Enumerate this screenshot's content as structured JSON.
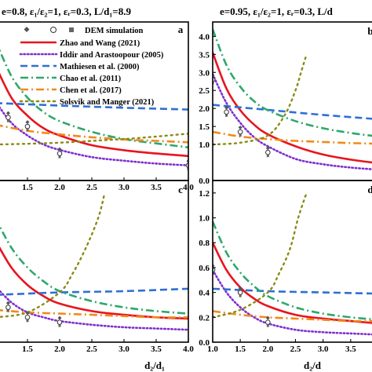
{
  "chart_data": [
    {
      "panel": "a",
      "type": "line",
      "title": "e=0.8,  ε₁/ε₂=1,  εᵣ=0.3,  L/d₁=8.9",
      "xlim": [
        1.0,
        4.0
      ],
      "ylim": [
        0,
        4.4
      ],
      "xticks": [
        "1.5",
        "2.0",
        "2.5",
        "3.0",
        "3.5",
        "4.0"
      ],
      "yticks": [],
      "legend": {
        "placement": "top-right",
        "markers_label": "DEM simulation",
        "entries": [
          {
            "name": "Zhao and Wang (2021)",
            "color": "#e8141e",
            "dash": "solid"
          },
          {
            "name": "Iddir and Arastoopour (2005)",
            "color": "#7f2fcf",
            "dash": "dot"
          },
          {
            "name": "Mathiesen et al. (2000)",
            "color": "#2f6fd6",
            "dash": "dash"
          },
          {
            "name": "Chao et al. (2011)",
            "color": "#2da86b",
            "dash": "dashdot"
          },
          {
            "name": "Chen et al. (2017)",
            "color": "#f08a1c",
            "dash": "dashdot"
          },
          {
            "name": "Solsvik and Manger (2021)",
            "color": "#8a8a16",
            "dash": "shortdot"
          }
        ]
      },
      "series": [
        {
          "x": [
            1.0,
            1.25,
            1.5,
            1.75,
            2.0,
            2.5,
            3.0,
            3.5,
            4.0
          ],
          "values": [
            3.2,
            2.3,
            1.8,
            1.45,
            1.25,
            0.98,
            0.84,
            0.75,
            0.68
          ]
        },
        {
          "x": [
            1.0,
            1.25,
            1.5,
            1.75,
            2.0,
            2.5,
            3.0,
            3.5,
            4.0
          ],
          "values": [
            2.2,
            1.6,
            1.25,
            1.0,
            0.85,
            0.65,
            0.55,
            0.47,
            0.42
          ]
        },
        {
          "x": [
            1.0,
            2.0,
            3.0,
            4.0
          ],
          "values": [
            2.15,
            2.08,
            2.02,
            1.97
          ]
        },
        {
          "x": [
            1.0,
            1.25,
            1.5,
            1.75,
            2.0,
            2.5,
            3.0,
            3.5,
            4.0
          ],
          "values": [
            3.9,
            2.9,
            2.3,
            1.9,
            1.65,
            1.35,
            1.15,
            1.03,
            0.92
          ]
        },
        {
          "x": [
            1.0,
            1.5,
            2.0,
            2.5,
            3.0,
            3.5,
            4.0
          ],
          "values": [
            1.55,
            1.38,
            1.28,
            1.2,
            1.14,
            1.1,
            1.06
          ]
        },
        {
          "x": [
            1.0,
            1.5,
            2.0,
            2.5,
            3.0,
            3.5,
            4.0
          ],
          "values": [
            1.0,
            1.02,
            1.05,
            1.1,
            1.15,
            1.22,
            1.3
          ]
        }
      ],
      "dem_points": {
        "x": [
          1.0,
          1.2,
          1.5,
          2.0,
          4.0
        ],
        "values": [
          1.9,
          1.75,
          1.5,
          0.75,
          0.42
        ]
      }
    },
    {
      "panel": "b",
      "type": "line",
      "title": "e=0.95,  ε₁/ε₂=1,  εᵣ=0.3,  L/d",
      "xlim": [
        1.0,
        4.0
      ],
      "ylim": [
        0,
        4.4
      ],
      "xticks": [],
      "yticks": [
        "0.0",
        "1.0",
        "1.5",
        "2.0",
        "2.5",
        "3.0",
        "3.5",
        "4.0"
      ],
      "series": [
        {
          "x": [
            1.0,
            1.25,
            1.5,
            1.75,
            2.0,
            2.5,
            3.0,
            3.5,
            4.0
          ],
          "values": [
            3.55,
            2.55,
            1.95,
            1.55,
            1.28,
            0.95,
            0.72,
            0.58,
            0.48
          ]
        },
        {
          "x": [
            1.0,
            1.25,
            1.5,
            1.75,
            2.0,
            2.5,
            3.0,
            3.5,
            4.0
          ],
          "values": [
            2.95,
            2.15,
            1.6,
            1.2,
            0.95,
            0.6,
            0.45,
            0.36,
            0.3
          ]
        },
        {
          "x": [
            1.0,
            2.0,
            3.0,
            4.0
          ],
          "values": [
            2.1,
            1.96,
            1.82,
            1.7
          ]
        },
        {
          "x": [
            1.0,
            1.25,
            1.5,
            1.75,
            2.0,
            2.5,
            3.0,
            3.5,
            4.0
          ],
          "values": [
            4.2,
            3.2,
            2.6,
            2.2,
            1.95,
            1.65,
            1.45,
            1.32,
            1.22
          ]
        },
        {
          "x": [
            1.0,
            1.5,
            2.0,
            2.5,
            3.0,
            3.5,
            4.0
          ],
          "values": [
            1.35,
            1.22,
            1.15,
            1.1,
            1.07,
            1.04,
            1.02
          ]
        },
        {
          "x": [
            1.0,
            1.5,
            2.0,
            2.3,
            2.5,
            2.6,
            2.7
          ],
          "values": [
            1.0,
            1.05,
            1.25,
            1.8,
            2.5,
            3.0,
            3.5
          ]
        }
      ],
      "dem_points": {
        "x": [
          1.0,
          1.25,
          1.5,
          2.0
        ],
        "values": [
          2.8,
          1.9,
          1.35,
          0.78
        ]
      }
    },
    {
      "panel": "c",
      "type": "line",
      "xlim": [
        1.0,
        4.0
      ],
      "ylim": [
        0,
        1.3
      ],
      "xticks": [
        "1.5",
        "2.0",
        "2.5",
        "3.0",
        "3.5",
        "4.0"
      ],
      "yticks": [],
      "xlabel": "d₂/d₁",
      "series": [
        {
          "x": [
            1.0,
            1.25,
            1.5,
            1.75,
            2.0,
            2.5,
            3.0,
            3.5,
            4.0
          ],
          "values": [
            0.82,
            0.6,
            0.46,
            0.37,
            0.31,
            0.25,
            0.22,
            0.2,
            0.19
          ]
        },
        {
          "x": [
            1.0,
            1.25,
            1.5,
            1.75,
            2.0,
            2.5,
            3.0,
            3.5,
            4.0
          ],
          "values": [
            0.45,
            0.32,
            0.24,
            0.2,
            0.17,
            0.14,
            0.12,
            0.11,
            0.1
          ]
        },
        {
          "x": [
            1.0,
            2.0,
            3.0,
            4.0
          ],
          "values": [
            0.38,
            0.4,
            0.41,
            0.43
          ]
        },
        {
          "x": [
            1.0,
            1.25,
            1.5,
            1.75,
            2.0,
            2.5,
            3.0,
            3.5,
            4.0
          ],
          "values": [
            1.0,
            0.76,
            0.6,
            0.49,
            0.41,
            0.33,
            0.28,
            0.25,
            0.23
          ]
        },
        {
          "x": [
            1.0,
            1.5,
            2.0,
            2.5,
            3.0,
            3.5,
            4.0
          ],
          "values": [
            0.26,
            0.24,
            0.23,
            0.22,
            0.21,
            0.2,
            0.2
          ]
        },
        {
          "x": [
            1.0,
            1.5,
            2.0,
            2.2,
            2.4,
            2.6,
            2.7
          ],
          "values": [
            0.2,
            0.24,
            0.4,
            0.55,
            0.75,
            1.0,
            1.2
          ]
        }
      ],
      "dem_points": {
        "x": [
          1.0,
          1.2,
          1.5,
          2.0
        ],
        "values": [
          0.35,
          0.28,
          0.2,
          0.16
        ]
      }
    },
    {
      "panel": "d",
      "type": "line",
      "xlim": [
        1.0,
        4.0
      ],
      "ylim": [
        0,
        1.3
      ],
      "xticks": [
        "1.0",
        "1.5",
        "2.0",
        "2.5",
        "3.0",
        "3.5"
      ],
      "yticks": [
        "0.0",
        "0.2",
        "0.4",
        "0.6",
        "0.8",
        "1.0",
        "1.2"
      ],
      "xlabel": "d₂/d",
      "series": [
        {
          "x": [
            1.0,
            1.25,
            1.5,
            1.75,
            2.0,
            2.5,
            3.0,
            3.5,
            4.0
          ],
          "values": [
            0.8,
            0.58,
            0.44,
            0.35,
            0.29,
            0.22,
            0.19,
            0.17,
            0.15
          ]
        },
        {
          "x": [
            1.0,
            1.25,
            1.5,
            1.75,
            2.0,
            2.5,
            3.0,
            3.5,
            4.0
          ],
          "values": [
            0.58,
            0.4,
            0.28,
            0.2,
            0.15,
            0.1,
            0.08,
            0.07,
            0.06
          ]
        },
        {
          "x": [
            1.0,
            2.0,
            3.0,
            4.0
          ],
          "values": [
            0.43,
            0.41,
            0.4,
            0.39
          ]
        },
        {
          "x": [
            1.0,
            1.25,
            1.5,
            1.75,
            2.0,
            2.5,
            3.0,
            3.5,
            4.0
          ],
          "values": [
            0.97,
            0.72,
            0.56,
            0.45,
            0.37,
            0.28,
            0.23,
            0.2,
            0.18
          ]
        },
        {
          "x": [
            1.0,
            1.5,
            2.0,
            2.5,
            3.0,
            3.5,
            4.0
          ],
          "values": [
            0.25,
            0.22,
            0.2,
            0.19,
            0.18,
            0.17,
            0.17
          ]
        },
        {
          "x": [
            1.0,
            1.5,
            2.0,
            2.2,
            2.4,
            2.55,
            2.7
          ],
          "values": [
            0.2,
            0.26,
            0.4,
            0.55,
            0.75,
            1.0,
            1.2
          ]
        }
      ],
      "dem_points": {
        "x": [
          1.0,
          1.5,
          2.0
        ],
        "values": [
          0.58,
          0.4,
          0.16
        ]
      }
    }
  ]
}
